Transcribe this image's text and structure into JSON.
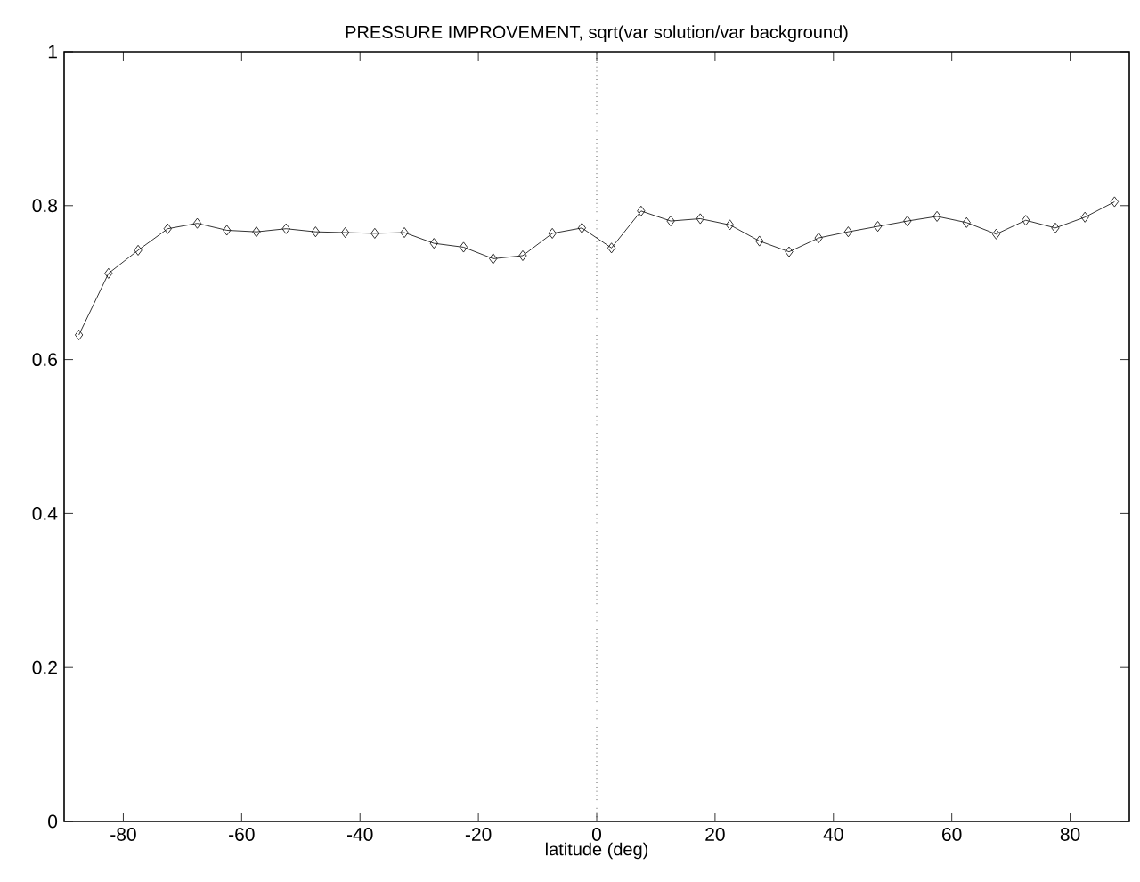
{
  "chart_data": {
    "type": "line",
    "title": "PRESSURE IMPROVEMENT, sqrt(var solution/var background)",
    "xlabel": "latitude (deg)",
    "x": [
      -87.5,
      -82.5,
      -77.5,
      -72.5,
      -67.5,
      -62.5,
      -57.5,
      -52.5,
      -47.5,
      -42.5,
      -37.5,
      -32.5,
      -27.5,
      -22.5,
      -17.5,
      -12.5,
      -7.5,
      -2.5,
      2.5,
      7.5,
      12.5,
      17.5,
      22.5,
      27.5,
      32.5,
      37.5,
      42.5,
      47.5,
      52.5,
      57.5,
      62.5,
      67.5,
      72.5,
      77.5,
      82.5,
      87.5
    ],
    "series": [
      {
        "color": "#000000",
        "values": [
          0.632,
          0.712,
          0.742,
          0.77,
          0.777,
          0.768,
          0.766,
          0.77,
          0.766,
          0.765,
          0.764,
          0.765,
          0.751,
          0.746,
          0.731,
          0.735,
          0.764,
          0.771,
          0.745,
          0.793,
          0.78,
          0.783,
          0.775,
          0.754,
          0.74,
          0.758,
          0.766,
          0.773,
          0.78,
          0.786,
          0.778,
          0.763,
          0.781,
          0.771,
          0.785,
          0.805
        ]
      }
    ],
    "xlim": [
      -90,
      90
    ],
    "ylim": [
      0,
      1
    ],
    "xticks": [
      -80,
      -60,
      -40,
      -20,
      0,
      20,
      40,
      60,
      80
    ],
    "yticks": [
      0,
      0.2,
      0.4,
      0.6,
      0.8,
      1
    ],
    "ref_lines": [
      {
        "axis": "x",
        "value": 0,
        "color": "#000000",
        "line_style": "dotted"
      }
    ],
    "marker": "diamond",
    "line_style": "solid",
    "grid": false
  }
}
